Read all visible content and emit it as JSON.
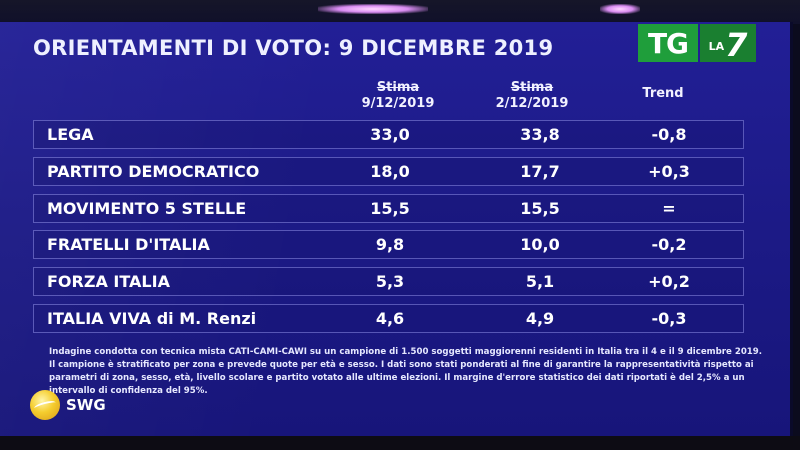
{
  "title": "ORIENTAMENTI DI VOTO: 9 DICEMBRE 2019",
  "logo": {
    "tg": "TG",
    "la": "LA",
    "seven": "7",
    "brand_green": "#1f9e3b"
  },
  "columns": {
    "col1_label": "Stima",
    "col1_date": "9/12/2019",
    "col2_label": "Stima",
    "col2_date": "2/12/2019",
    "col3_label": "Trend"
  },
  "rows": [
    {
      "party": "LEGA",
      "current": "33,0",
      "previous": "33,8",
      "trend": "-0,8"
    },
    {
      "party": "PARTITO DEMOCRATICO",
      "current": "18,0",
      "previous": "17,7",
      "trend": "+0,3"
    },
    {
      "party": "MOVIMENTO 5 STELLE",
      "current": "15,5",
      "previous": "15,5",
      "trend": "="
    },
    {
      "party": "FRATELLI D'ITALIA",
      "current": "9,8",
      "previous": "10,0",
      "trend": "-0,2"
    },
    {
      "party": "FORZA ITALIA",
      "current": "5,3",
      "previous": "5,1",
      "trend": "+0,2"
    },
    {
      "party": "ITALIA VIVA di M. Renzi",
      "current": "4,6",
      "previous": "4,9",
      "trend": "-0,3"
    }
  ],
  "methodology_note": "Indagine condotta con tecnica mista CATI-CAMI-CAWI su un campione di 1.500 soggetti maggiorenni residenti in Italia tra il 4 e il 9 dicembre 2019. Il campione è stratificato per zona e prevede quote per età e sesso. I dati sono stati ponderati al fine di garantire la rappresentatività rispetto ai parametri di zona, sesso, età, livello scolare e partito votato alle ultime elezioni. Il margine d'errore statistico dei dati riportati è del 2,5% a un intervallo di confidenza del 95%.",
  "source_logo": {
    "text": "SWG",
    "icon": "swg-globe-icon"
  }
}
